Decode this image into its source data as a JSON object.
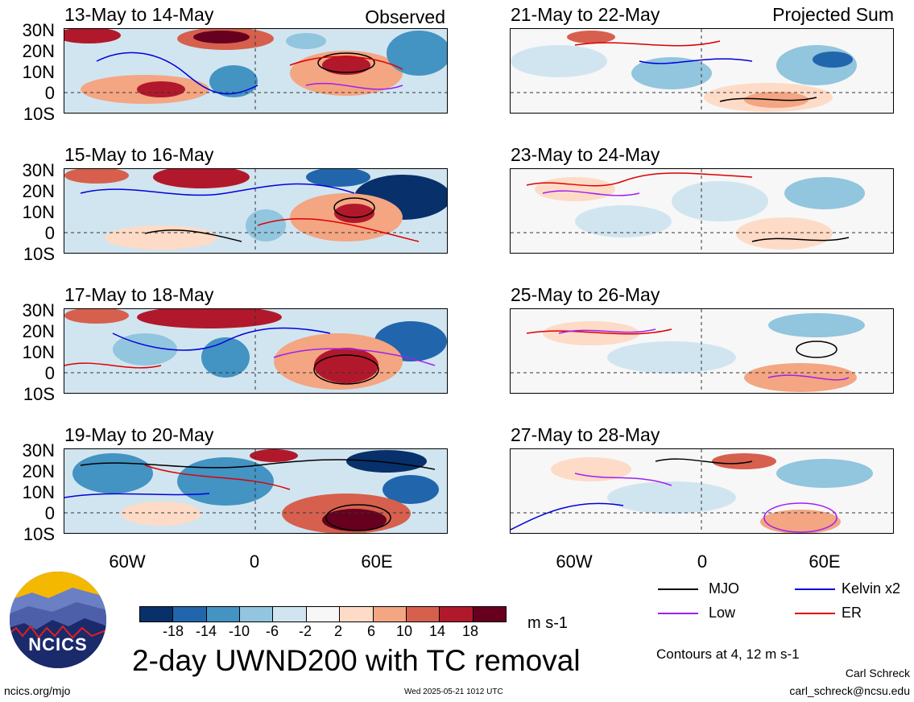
{
  "panels_left": [
    {
      "title": "13-May to 14-May",
      "tag": "Observed"
    },
    {
      "title": "15-May to 16-May",
      "tag": ""
    },
    {
      "title": "17-May to 18-May",
      "tag": ""
    },
    {
      "title": "19-May to 20-May",
      "tag": ""
    }
  ],
  "panels_right": [
    {
      "title": "21-May to 22-May",
      "tag": "Projected Sum"
    },
    {
      "title": "23-May to 24-May",
      "tag": ""
    },
    {
      "title": "25-May to 26-May",
      "tag": ""
    },
    {
      "title": "27-May to 28-May",
      "tag": ""
    }
  ],
  "lat_labels": [
    "30N",
    "20N",
    "10N",
    "0",
    "10S"
  ],
  "lon_labels": [
    "60W",
    "0",
    "60E"
  ],
  "colorbar": {
    "labels": [
      "-18",
      "-14",
      "-10",
      "-6",
      "-2",
      "2",
      "6",
      "10",
      "14",
      "18"
    ],
    "units": "m s-1",
    "colors": [
      "#08306b",
      "#2166ac",
      "#4393c3",
      "#92c5de",
      "#d1e5f0",
      "#f7f7f7",
      "#fddbc7",
      "#f4a582",
      "#d6604d",
      "#b2182b",
      "#67001f"
    ]
  },
  "legend": [
    {
      "label": "MJO",
      "color": "#000000"
    },
    {
      "label": "Kelvin x2",
      "color": "#0000dd"
    },
    {
      "label": "Low",
      "color": "#a020f0"
    },
    {
      "label": "ER",
      "color": "#dd0000"
    }
  ],
  "contour_note": "Contours at 4, 12 m s-1",
  "main_title": "2-day UWND200 with TC removal",
  "logo_text": "NCICS",
  "url": "ncics.org/mjo",
  "timestamp": "Wed 2025-05-21 1012 UTC",
  "author": "Carl Schreck",
  "email": "carl_schreck@ncsu.edu"
}
